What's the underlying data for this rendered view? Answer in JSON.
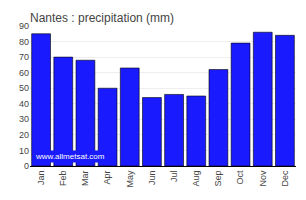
{
  "chart_data": {
    "type": "bar",
    "title": "Nantes : precipitation (mm)",
    "categories": [
      "Jan",
      "Feb",
      "Mar",
      "Apr",
      "May",
      "Jun",
      "Jul",
      "Aug",
      "Sep",
      "Oct",
      "Nov",
      "Dec"
    ],
    "values": [
      85,
      70,
      68,
      50,
      63,
      44,
      46,
      45,
      62,
      79,
      86,
      84
    ],
    "color": "#1a1aff",
    "ylim": [
      0,
      90
    ],
    "yticks": [
      0,
      10,
      20,
      30,
      40,
      50,
      60,
      70,
      80,
      90
    ],
    "grid": true,
    "annotations": [
      "www.allmetsat.com"
    ]
  }
}
